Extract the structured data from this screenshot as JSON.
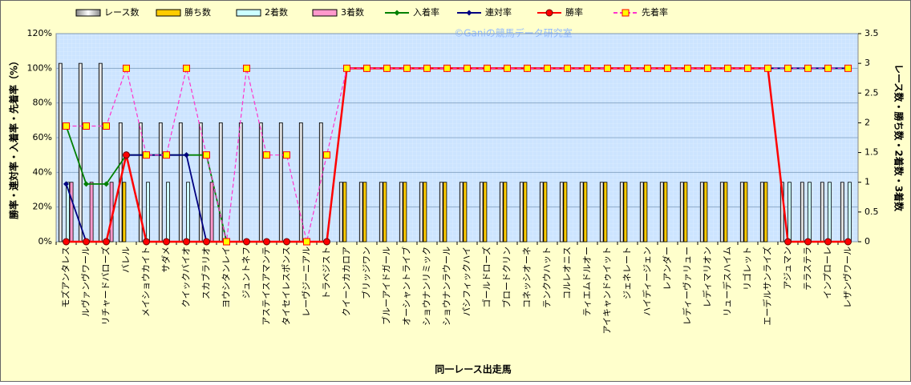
{
  "chart_data": {
    "type": "combo",
    "watermark": "©Ganiの競馬データ研究室",
    "x_label": "同一レース出走馬",
    "y_label": "勝率・連対率・入着率・先着率（%）",
    "y2_label": "レース数・勝ち数・2着数・3着数",
    "legend": "top",
    "categories": [
      "モズアンタレス",
      "ルヴァンヴワール",
      "リチャードバローズ",
      "バレル",
      "メイショウカイト",
      "サダメ",
      "クイックバイオ",
      "スカブラリオ",
      "ヨウシタンレイ",
      "ジュントネフ",
      "アステイスアマンテ",
      "タイセイレスポンス",
      "レーヴジーニアル",
      "トラベジスト",
      "クイーンカカロア",
      "ブリッジワン",
      "ブルーアイドガール",
      "オーシャントライブ",
      "ショウナンリミック",
      "ショウナンラウール",
      "パシフィックハイ",
      "ゴールドローズ",
      "ブロードクリン",
      "コネッシオーネ",
      "テンクウハット",
      "コルレオニス",
      "ティエムドルオー",
      "アイキャンドゥイット",
      "ジェネレート",
      "ハイディージェン",
      "レアンダー",
      "レディーヴァリュー",
      "レディマリオン",
      "リューデスハイム",
      "リゴレット",
      "エーデルサンライズ",
      "アジュマン",
      "テラステラ",
      "インプローレ",
      "レザンヴワール"
    ],
    "ylim": [
      0,
      120
    ],
    "yticks": [
      {
        "value": 0,
        "label": "0%"
      },
      {
        "value": 20,
        "label": "20%"
      },
      {
        "value": 40,
        "label": "40%"
      },
      {
        "value": 60,
        "label": "60%"
      },
      {
        "value": 80,
        "label": "80%"
      },
      {
        "value": 100,
        "label": "100%"
      },
      {
        "value": 120,
        "label": "120%"
      }
    ],
    "y2lim": [
      0,
      3.5
    ],
    "y2ticks": [
      0,
      0.5,
      1,
      1.5,
      2,
      2.5,
      3,
      3.5
    ],
    "series": [
      {
        "name": "レース数",
        "kind": "bar",
        "axis": "y2",
        "color": "#ffffff",
        "values": [
          3,
          3,
          3,
          2,
          2,
          2,
          2,
          2,
          2,
          2,
          2,
          2,
          2,
          2,
          1,
          1,
          1,
          1,
          1,
          1,
          1,
          1,
          1,
          1,
          1,
          1,
          1,
          1,
          1,
          1,
          1,
          1,
          1,
          1,
          1,
          1,
          1,
          1,
          1,
          1
        ]
      },
      {
        "name": "勝ち数",
        "kind": "bar",
        "axis": "y2",
        "color": "#ffcc00",
        "values": [
          0,
          0,
          0,
          1,
          0,
          0,
          0,
          0,
          0,
          0,
          0,
          0,
          0,
          0,
          1,
          1,
          1,
          1,
          1,
          1,
          1,
          1,
          1,
          1,
          1,
          1,
          1,
          1,
          1,
          1,
          1,
          1,
          1,
          1,
          1,
          1,
          0,
          0,
          0,
          0
        ]
      },
      {
        "name": "2着数",
        "kind": "bar",
        "axis": "y2",
        "color": "#ccffff",
        "values": [
          1,
          0,
          0,
          0,
          1,
          1,
          1,
          0,
          0,
          0,
          0,
          0,
          0,
          0,
          0,
          0,
          0,
          0,
          0,
          0,
          0,
          0,
          0,
          0,
          0,
          0,
          0,
          0,
          0,
          0,
          0,
          0,
          0,
          0,
          0,
          0,
          1,
          1,
          1,
          1
        ]
      },
      {
        "name": "3着数",
        "kind": "bar",
        "axis": "y2",
        "color": "#ff99cc",
        "values": [
          1,
          1,
          1,
          0,
          0,
          0,
          0,
          1,
          0,
          0,
          0,
          0,
          0,
          0,
          0,
          0,
          0,
          0,
          0,
          0,
          0,
          0,
          0,
          0,
          0,
          0,
          0,
          0,
          0,
          0,
          0,
          0,
          0,
          0,
          0,
          0,
          0,
          0,
          0,
          0
        ]
      },
      {
        "name": "入着率",
        "kind": "line",
        "marker": "diamond",
        "color": "#008000",
        "values": [
          66.7,
          33.3,
          33.3,
          50,
          50,
          50,
          50,
          50,
          0,
          0,
          0,
          0,
          0,
          0,
          100,
          100,
          100,
          100,
          100,
          100,
          100,
          100,
          100,
          100,
          100,
          100,
          100,
          100,
          100,
          100,
          100,
          100,
          100,
          100,
          100,
          100,
          100,
          100,
          100,
          100
        ]
      },
      {
        "name": "連対率",
        "kind": "line",
        "marker": "diamond",
        "color": "#000080",
        "values": [
          33.3,
          0,
          0,
          50,
          50,
          50,
          50,
          0,
          0,
          0,
          0,
          0,
          0,
          0,
          100,
          100,
          100,
          100,
          100,
          100,
          100,
          100,
          100,
          100,
          100,
          100,
          100,
          100,
          100,
          100,
          100,
          100,
          100,
          100,
          100,
          100,
          100,
          100,
          100,
          100
        ]
      },
      {
        "name": "勝率",
        "kind": "line",
        "marker": "circle",
        "color": "#ff0000",
        "values": [
          0,
          0,
          0,
          50,
          0,
          0,
          0,
          0,
          0,
          0,
          0,
          0,
          0,
          0,
          100,
          100,
          100,
          100,
          100,
          100,
          100,
          100,
          100,
          100,
          100,
          100,
          100,
          100,
          100,
          100,
          100,
          100,
          100,
          100,
          100,
          100,
          0,
          0,
          0,
          0
        ]
      },
      {
        "name": "先着率",
        "kind": "line",
        "marker": "square",
        "dashed": true,
        "color": "#ff33cc",
        "values": [
          66.7,
          66.7,
          66.7,
          100,
          50,
          50,
          100,
          50,
          0,
          100,
          50,
          50,
          0,
          50,
          100,
          100,
          100,
          100,
          100,
          100,
          100,
          100,
          100,
          100,
          100,
          100,
          100,
          100,
          100,
          100,
          100,
          100,
          100,
          100,
          100,
          100,
          100,
          100,
          100,
          100
        ]
      }
    ]
  }
}
